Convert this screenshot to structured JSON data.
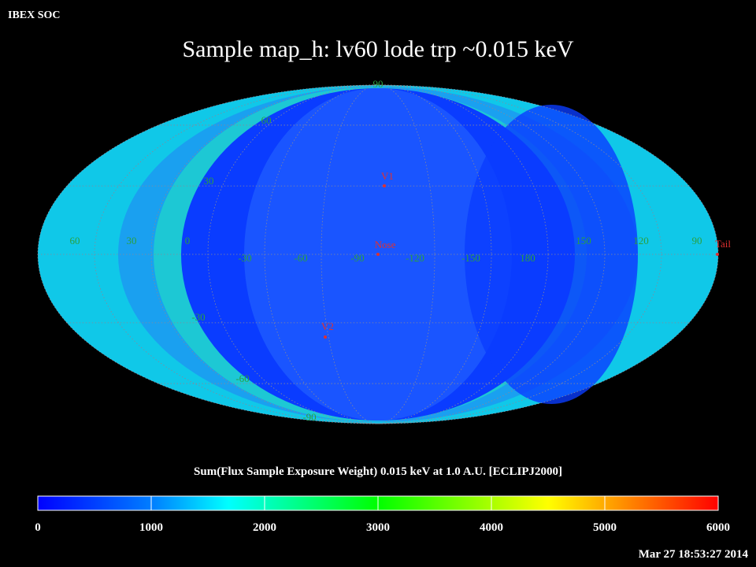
{
  "header": "IBEX SOC",
  "title": "Sample map_h: lv60 lode trp ~0.015 keV",
  "map": {
    "longitude_labels": [
      "60",
      "30",
      "0",
      "-30",
      "-60",
      "-90",
      "-120",
      "-150",
      "180",
      "150",
      "120",
      "90"
    ],
    "latitude_labels": [
      "90",
      "60",
      "30",
      "-30",
      "-60",
      "-90"
    ],
    "markers": [
      "V1",
      "Nose",
      "V2",
      "Tail"
    ]
  },
  "colorbar": {
    "label": "Sum(Flux Sample Exposure Weight)  0.015 keV at 1.0 A.U. [ECLIPJ2000]",
    "lim": [
      0,
      6000
    ],
    "ticks": [
      0,
      1000,
      2000,
      3000,
      4000,
      5000,
      6000
    ]
  },
  "timestamp": "Mar 27 18:53:27 2014"
}
